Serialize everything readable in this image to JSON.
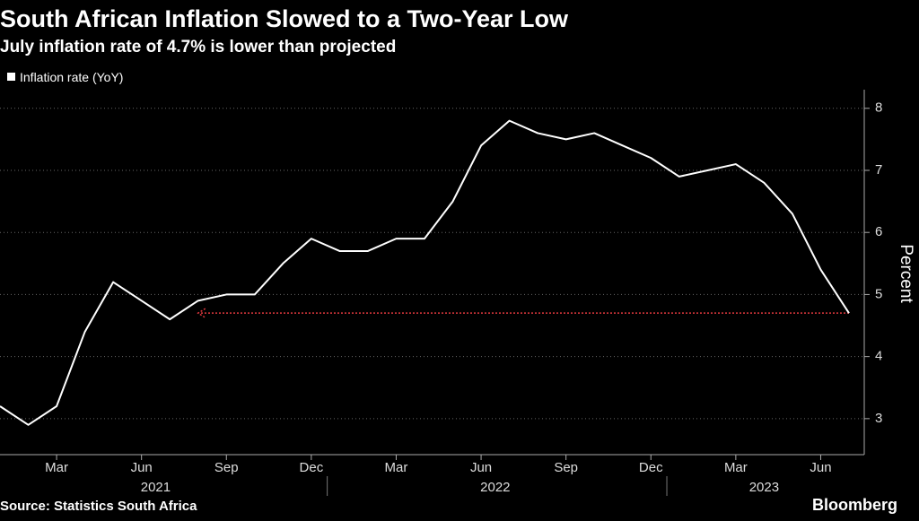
{
  "chart_data": {
    "type": "line",
    "title": "South African Inflation Slowed to a Two-Year Low",
    "subtitle": "July inflation rate of 4.7% is lower than projected",
    "y_label": "Percent",
    "source": "Source: Statistics South Africa",
    "brand": "Bloomberg",
    "x": [
      "2021-01",
      "2021-02",
      "2021-03",
      "2021-04",
      "2021-05",
      "2021-06",
      "2021-07",
      "2021-08",
      "2021-09",
      "2021-10",
      "2021-11",
      "2021-12",
      "2022-01",
      "2022-02",
      "2022-03",
      "2022-04",
      "2022-05",
      "2022-06",
      "2022-07",
      "2022-08",
      "2022-09",
      "2022-10",
      "2022-11",
      "2022-12",
      "2023-01",
      "2023-02",
      "2023-03",
      "2023-04",
      "2023-05",
      "2023-06",
      "2023-07"
    ],
    "series": [
      {
        "name": "Inflation rate (YoY)",
        "color": "#ffffff",
        "values": [
          3.2,
          2.9,
          3.2,
          4.4,
          5.2,
          4.9,
          4.6,
          4.9,
          5.0,
          5.0,
          5.5,
          5.9,
          5.7,
          5.7,
          5.9,
          5.9,
          6.5,
          7.4,
          7.8,
          7.6,
          7.5,
          7.6,
          7.4,
          7.2,
          6.9,
          7.0,
          7.1,
          6.8,
          6.3,
          5.4,
          4.7
        ]
      }
    ],
    "xlim": [
      "2021-01",
      "2023-07"
    ],
    "xticks": [
      {
        "value": "2021-03",
        "label": "Mar"
      },
      {
        "value": "2021-06",
        "label": "Jun"
      },
      {
        "value": "2021-09",
        "label": "Sep"
      },
      {
        "value": "2021-12",
        "label": "Dec"
      },
      {
        "value": "2022-03",
        "label": "Mar"
      },
      {
        "value": "2022-06",
        "label": "Jun"
      },
      {
        "value": "2022-09",
        "label": "Sep"
      },
      {
        "value": "2022-12",
        "label": "Dec"
      },
      {
        "value": "2023-03",
        "label": "Mar"
      },
      {
        "value": "2023-06",
        "label": "Jun"
      }
    ],
    "year_labels": [
      "2021",
      "2022",
      "2023"
    ],
    "ylim": [
      2.42,
      8.3
    ],
    "yticks": [
      3,
      4,
      5,
      6,
      7,
      8
    ],
    "grid": true,
    "arrow": {
      "from": "2023-07",
      "to": "2021-08",
      "y": 4.7,
      "color": "#e0383e"
    }
  }
}
